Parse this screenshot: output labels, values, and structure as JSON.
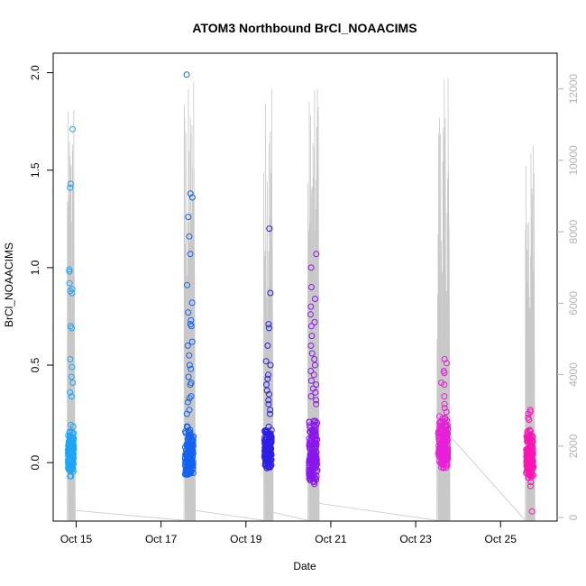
{
  "chart_data": {
    "type": "scatter",
    "title": "ATOM3 Northbound BrCl_NOAACIMS",
    "xlabel": "Date",
    "ylabel": "BrCl_NOAACIMS",
    "xlim": [
      "2017-10-14T11:00",
      "2017-10-26T08:00"
    ],
    "ylim": [
      -0.3,
      2.1
    ],
    "y2lim": [
      -100,
      13000
    ],
    "x_ticks": [
      {
        "date": "2017-10-15",
        "label": "Oct 15"
      },
      {
        "date": "2017-10-17",
        "label": "Oct 17"
      },
      {
        "date": "2017-10-19",
        "label": "Oct 19"
      },
      {
        "date": "2017-10-21",
        "label": "Oct 21"
      },
      {
        "date": "2017-10-23",
        "label": "Oct 23"
      },
      {
        "date": "2017-10-25",
        "label": "Oct 25"
      }
    ],
    "y_ticks": [
      "0.0",
      "0.5",
      "1.0",
      "1.5",
      "2.0"
    ],
    "y2_ticks": [
      "0",
      "2000",
      "4000",
      "6000",
      "8000",
      "10000",
      "12000"
    ],
    "grid": false,
    "legend": "none",
    "secondary_axis_label": "",
    "colors": {
      "altitude_line": "#c8c8c8",
      "right_axis": "#b4b4b4",
      "flight_colors": [
        "#1fa5f5",
        "#1462f0",
        "#2e1fe6",
        "#8a16ee",
        "#e81fd8",
        "#fb14b4"
      ]
    },
    "flights": [
      {
        "start": "2017-10-14T19:00",
        "end": "2017-10-14T23:00",
        "color": "#1fa5f5",
        "core_range": [
          -0.05,
          0.2
        ],
        "outliers": [
          1.71,
          1.43,
          1.41,
          0.99,
          0.98,
          0.92,
          0.89,
          0.88,
          0.87,
          0.7,
          0.69,
          0.53,
          0.49,
          0.44,
          0.41,
          0.36,
          0.34,
          -0.07,
          -0.07
        ],
        "altitude_peak": 11400
      },
      {
        "start": "2017-10-17T13:00",
        "end": "2017-10-17T19:00",
        "color": "#1462f0",
        "core_range": [
          -0.07,
          0.2
        ],
        "outliers": [
          1.99,
          1.38,
          1.36,
          1.26,
          1.16,
          1.07,
          0.91,
          0.82,
          0.77,
          0.73,
          0.71,
          0.7,
          0.62,
          0.6,
          0.55,
          0.5,
          0.48,
          0.44,
          0.41,
          0.4,
          0.34,
          0.33,
          0.31,
          0.27,
          0.25
        ],
        "altitude_peak": 12200
      },
      {
        "start": "2017-10-19T10:00",
        "end": "2017-10-19T15:00",
        "color": "#2e1fe6",
        "core_range": [
          -0.03,
          0.2
        ],
        "outliers": [
          1.2,
          0.87,
          0.71,
          0.69,
          0.6,
          0.52,
          0.5,
          0.45,
          0.43,
          0.4,
          0.37,
          0.35,
          0.32,
          0.3,
          0.27,
          0.25
        ],
        "altitude_peak": 12000
      },
      {
        "start": "2017-10-20T11:00",
        "end": "2017-10-20T17:00",
        "color": "#8a16ee",
        "core_range": [
          -0.1,
          0.25
        ],
        "outliers": [
          1.07,
          1.0,
          0.9,
          0.84,
          0.8,
          0.76,
          0.72,
          0.7,
          0.65,
          0.6,
          0.56,
          0.53,
          0.5,
          0.47,
          0.45,
          0.42,
          0.4,
          0.38,
          0.36,
          0.34,
          0.32,
          0.3,
          -0.11,
          -0.1
        ],
        "altitude_peak": 12000
      },
      {
        "start": "2017-10-23T12:00",
        "end": "2017-10-23T19:00",
        "color": "#e81fd8",
        "core_range": [
          -0.04,
          0.25
        ],
        "outliers": [
          0.53,
          0.51,
          0.47,
          0.46,
          0.41,
          0.4,
          0.34,
          0.3,
          0.28,
          0.26
        ],
        "altitude_peak": 12300
      },
      {
        "start": "2017-10-25T14:00",
        "end": "2017-10-25T19:00",
        "color": "#fb14b4",
        "core_range": [
          -0.08,
          0.2
        ],
        "outliers": [
          0.27,
          0.26,
          0.25,
          0.23,
          0.22,
          -0.25,
          -0.12,
          -0.1
        ],
        "altitude_peak": 10400
      }
    ]
  }
}
